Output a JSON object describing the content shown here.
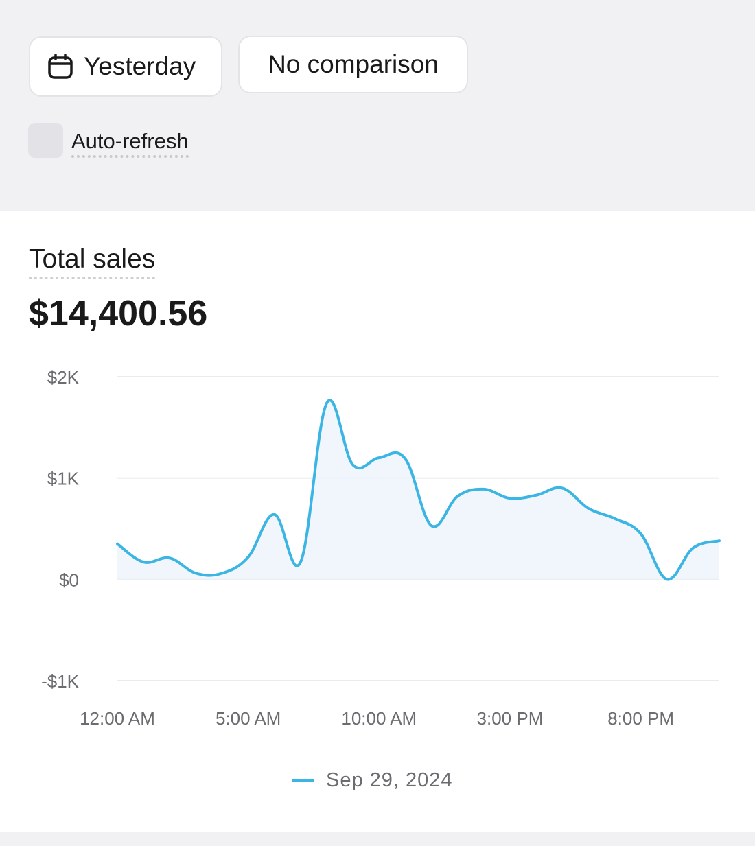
{
  "header": {
    "date_button_label": "Yesterday",
    "date_button_icon": "calendar-icon",
    "comparison_button_label": "No comparison",
    "auto_refresh_label": "Auto-refresh",
    "auto_refresh_checked": false
  },
  "card": {
    "title": "Total sales",
    "value": "$14,400.56"
  },
  "colors": {
    "line": "#3bb5e3",
    "fill": "#eef4fc",
    "grid": "#ebebee",
    "axis_text": "#6b6b70"
  },
  "chart_data": {
    "type": "line",
    "title": "",
    "xlabel": "",
    "ylabel": "",
    "ylim": [
      -1000,
      2000
    ],
    "y_ticks": [
      {
        "value": 2000,
        "label": "$2K"
      },
      {
        "value": 1000,
        "label": "$1K"
      },
      {
        "value": 0,
        "label": "$0"
      },
      {
        "value": -1000,
        "label": "-$1K"
      }
    ],
    "x_ticks": [
      {
        "hour": 0,
        "label": "12:00 AM"
      },
      {
        "hour": 5,
        "label": "5:00 AM"
      },
      {
        "hour": 10,
        "label": "10:00 AM"
      },
      {
        "hour": 15,
        "label": "3:00 PM"
      },
      {
        "hour": 20,
        "label": "8:00 PM"
      }
    ],
    "grid": true,
    "legend_position": "bottom-center",
    "series": [
      {
        "name": "Sep 29, 2024",
        "hours": [
          0,
          1,
          2,
          3,
          4,
          5,
          6,
          7,
          8,
          9,
          10,
          11,
          12,
          13,
          14,
          15,
          16,
          17,
          18,
          19,
          20,
          21,
          22,
          23
        ],
        "values": [
          350,
          170,
          210,
          60,
          60,
          220,
          640,
          170,
          1740,
          1130,
          1200,
          1190,
          530,
          820,
          890,
          800,
          830,
          900,
          700,
          600,
          450,
          0,
          310,
          380
        ]
      }
    ]
  }
}
